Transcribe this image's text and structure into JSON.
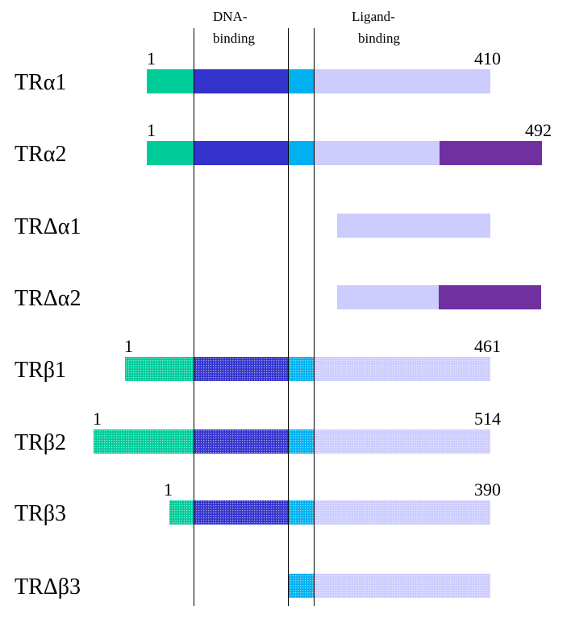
{
  "header": {
    "dna_line1": "DNA-",
    "dna_line2": "binding",
    "lig_line1": "Ligand-",
    "lig_line2": "binding"
  },
  "colors": {
    "teal": "#00CC99",
    "dna": "#3333CC",
    "hinge": "#00B0F0",
    "ligand": "#CCCCFF",
    "purple": "#7030A0"
  },
  "isoforms": [
    {
      "name": "TRα1",
      "start_label": "1",
      "end_label": "410",
      "pattern": "solid",
      "segments": [
        {
          "domain": "teal"
        },
        {
          "domain": "dna"
        },
        {
          "domain": "hinge"
        },
        {
          "domain": "ligand"
        }
      ]
    },
    {
      "name": "TRα2",
      "start_label": "1",
      "end_label": "492",
      "pattern": "solid",
      "segments": [
        {
          "domain": "teal"
        },
        {
          "domain": "dna"
        },
        {
          "domain": "hinge"
        },
        {
          "domain": "ligand"
        },
        {
          "domain": "purple"
        }
      ]
    },
    {
      "name": "TRΔα1",
      "start_label": "",
      "end_label": "",
      "pattern": "solid",
      "segments": [
        {
          "domain": "ligand"
        }
      ]
    },
    {
      "name": "TRΔα2",
      "start_label": "",
      "end_label": "",
      "pattern": "solid",
      "segments": [
        {
          "domain": "ligand"
        },
        {
          "domain": "purple"
        }
      ]
    },
    {
      "name": "TRβ1",
      "start_label": "1",
      "end_label": "461",
      "pattern": "dotted",
      "segments": [
        {
          "domain": "teal"
        },
        {
          "domain": "dna"
        },
        {
          "domain": "hinge"
        },
        {
          "domain": "ligand"
        }
      ]
    },
    {
      "name": "TRβ2",
      "start_label": "1",
      "end_label": "514",
      "pattern": "dotted",
      "segments": [
        {
          "domain": "teal"
        },
        {
          "domain": "dna"
        },
        {
          "domain": "hinge"
        },
        {
          "domain": "ligand"
        }
      ]
    },
    {
      "name": "TRβ3",
      "start_label": "1",
      "end_label": "390",
      "pattern": "dotted",
      "segments": [
        {
          "domain": "teal"
        },
        {
          "domain": "dna"
        },
        {
          "domain": "hinge"
        },
        {
          "domain": "ligand"
        }
      ]
    },
    {
      "name": "TRΔβ3",
      "start_label": "",
      "end_label": "",
      "pattern": "dotted",
      "segments": [
        {
          "domain": "hinge"
        },
        {
          "domain": "ligand"
        }
      ]
    }
  ]
}
